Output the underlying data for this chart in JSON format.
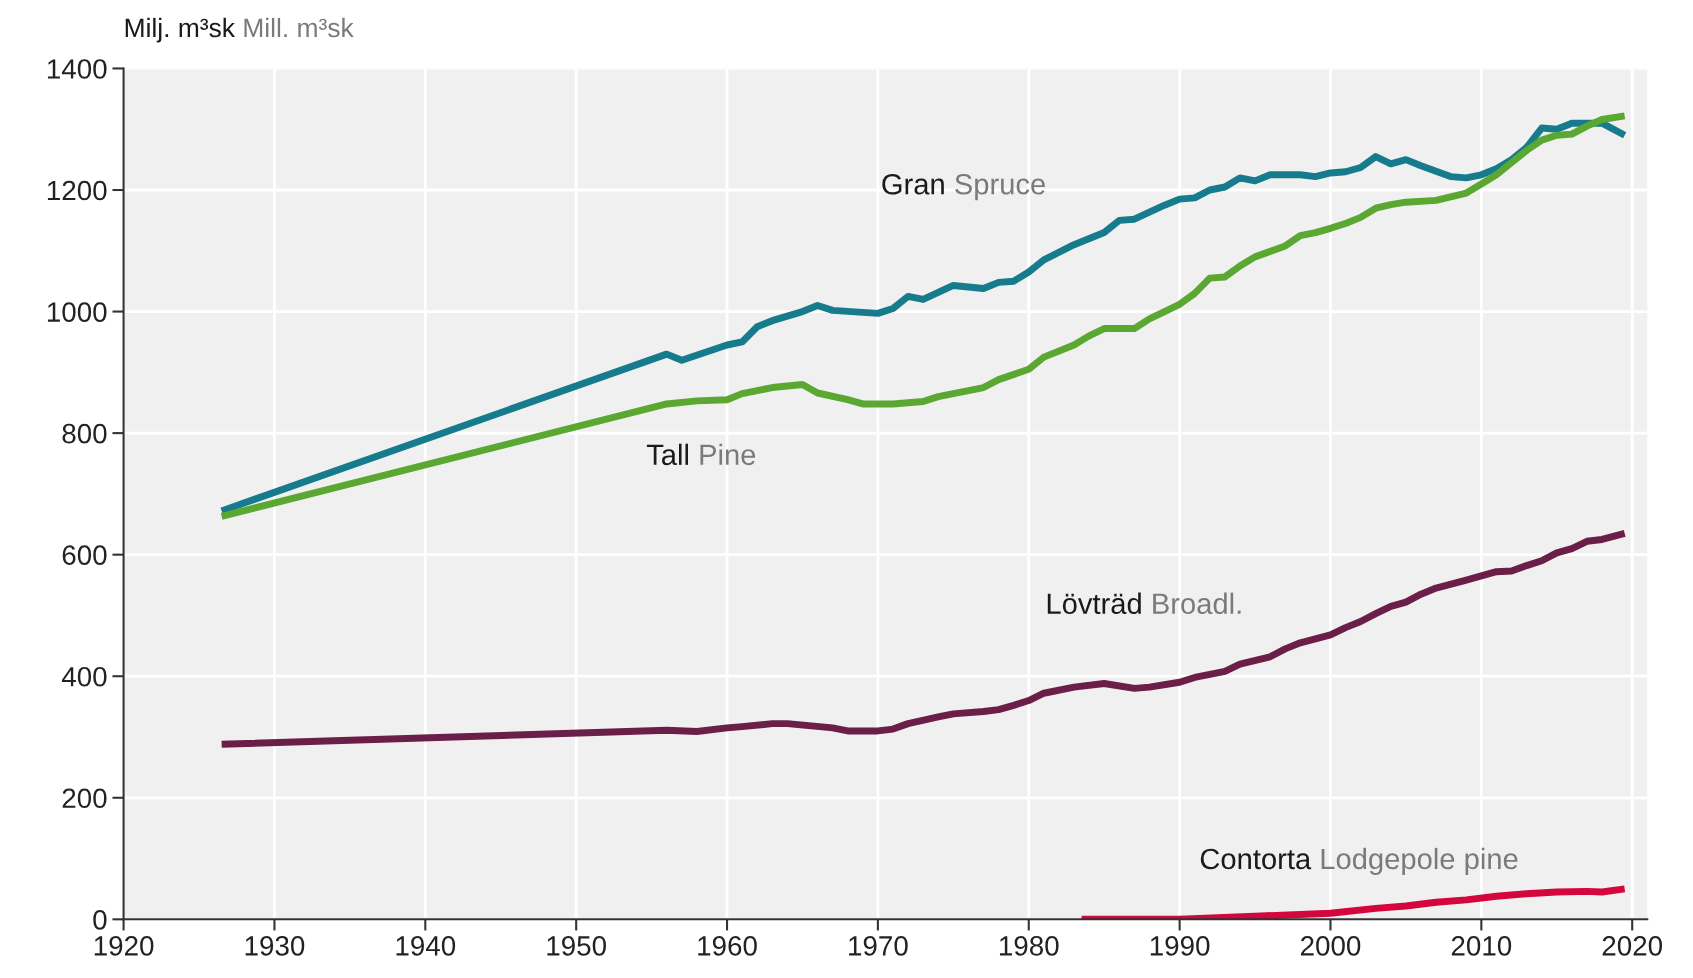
{
  "chart_data": {
    "type": "line",
    "ylabel": "Milj. m³sk Mill. m³sk",
    "xlim": [
      1920,
      2021
    ],
    "xticks": [
      1920,
      1930,
      1940,
      1950,
      1960,
      1970,
      1980,
      1990,
      2000,
      2010,
      2020
    ],
    "ylim": [
      0,
      1400
    ],
    "yticks": [
      0,
      200,
      400,
      600,
      800,
      1000,
      1200,
      1400
    ],
    "grid": true,
    "line_style": "solid",
    "marker": "none",
    "series": [
      {
        "name": "Gran Spruce",
        "color": "#167b8c",
        "x": [
          1926.5,
          1956,
          1957,
          1960,
          1961,
          1962,
          1963,
          1965,
          1966,
          1967,
          1970,
          1971,
          1972,
          1973,
          1975,
          1977,
          1978,
          1979,
          1980,
          1981,
          1983,
          1985,
          1986,
          1987,
          1989,
          1990,
          1991,
          1992,
          1993,
          1994,
          1995,
          1996,
          1998,
          1999,
          2000,
          2001,
          2002,
          2003,
          2004,
          2005,
          2006,
          2008,
          2009,
          2010,
          2011,
          2012,
          2013,
          2014,
          2015,
          2016,
          2018,
          2019.5
        ],
        "values": [
          672,
          930,
          920,
          945,
          950,
          975,
          985,
          1000,
          1010,
          1002,
          997,
          1005,
          1025,
          1020,
          1043,
          1038,
          1048,
          1050,
          1065,
          1085,
          1110,
          1130,
          1150,
          1152,
          1175,
          1185,
          1187,
          1200,
          1205,
          1220,
          1215,
          1225,
          1225,
          1222,
          1228,
          1230,
          1237,
          1255,
          1243,
          1250,
          1240,
          1222,
          1220,
          1225,
          1235,
          1250,
          1270,
          1302,
          1300,
          1310,
          1310,
          1290
        ]
      },
      {
        "name": "Tall Pine",
        "color": "#5aa832",
        "x": [
          1926.5,
          1956,
          1958,
          1960,
          1961,
          1963,
          1965,
          1966,
          1968,
          1969,
          1971,
          1973,
          1974,
          1976,
          1977,
          1978,
          1980,
          1981,
          1983,
          1984,
          1985,
          1987,
          1988,
          1990,
          1991,
          1992,
          1993,
          1994,
          1995,
          1997,
          1998,
          1999,
          2000,
          2001,
          2002,
          2003,
          2004,
          2005,
          2007,
          2009,
          2010,
          2011,
          2012,
          2013,
          2014,
          2015,
          2016,
          2017,
          2018,
          2019.5
        ],
        "values": [
          663,
          848,
          853,
          855,
          865,
          875,
          880,
          866,
          855,
          848,
          848,
          852,
          860,
          870,
          875,
          888,
          905,
          925,
          945,
          960,
          972,
          972,
          988,
          1012,
          1030,
          1055,
          1057,
          1075,
          1090,
          1108,
          1125,
          1130,
          1137,
          1145,
          1155,
          1170,
          1176,
          1180,
          1183,
          1195,
          1210,
          1225,
          1245,
          1265,
          1282,
          1290,
          1292,
          1305,
          1316,
          1322
        ]
      },
      {
        "name": "Lövträd Broadl.",
        "color": "#6b1e48",
        "x": [
          1926.5,
          1956,
          1958,
          1960,
          1961,
          1963,
          1964,
          1967,
          1968,
          1970,
          1971,
          1972,
          1974,
          1975,
          1977,
          1978,
          1979,
          1980,
          1981,
          1983,
          1985,
          1987,
          1988,
          1990,
          1991,
          1993,
          1994,
          1996,
          1997,
          1998,
          2000,
          2001,
          2002,
          2003,
          2004,
          2005,
          2006,
          2007,
          2009,
          2010,
          2011,
          2012,
          2013,
          2014,
          2015,
          2016,
          2017,
          2018,
          2019.5
        ],
        "values": [
          288,
          311,
          309,
          315,
          317,
          322,
          322,
          315,
          310,
          310,
          313,
          322,
          333,
          338,
          342,
          345,
          352,
          360,
          372,
          382,
          388,
          380,
          382,
          390,
          398,
          408,
          420,
          432,
          445,
          455,
          468,
          480,
          490,
          503,
          515,
          522,
          535,
          545,
          558,
          565,
          572,
          573,
          582,
          590,
          603,
          610,
          622,
          625,
          635
        ]
      },
      {
        "name": "Contorta Lodgepole pine",
        "color": "#d4063e",
        "x": [
          1983.5,
          1990,
          1995,
          2000,
          2003,
          2005,
          2007,
          2009,
          2011,
          2013,
          2015,
          2017,
          2018,
          2019.5
        ],
        "values": [
          0,
          0,
          5,
          10,
          18,
          22,
          28,
          32,
          38,
          42,
          45,
          46,
          45,
          50
        ]
      }
    ]
  }
}
